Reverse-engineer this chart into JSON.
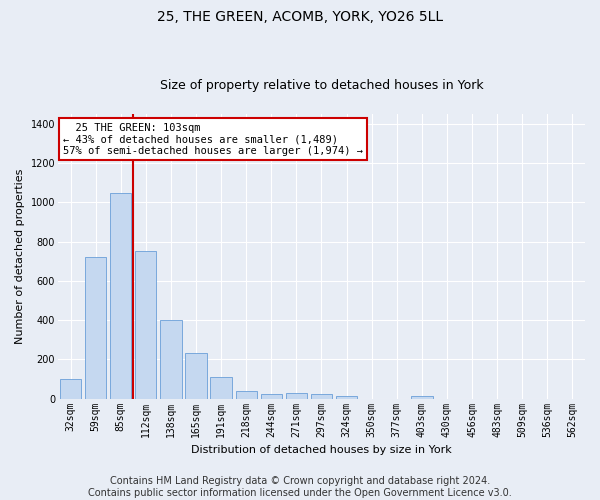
{
  "title": "25, THE GREEN, ACOMB, YORK, YO26 5LL",
  "subtitle": "Size of property relative to detached houses in York",
  "xlabel": "Distribution of detached houses by size in York",
  "ylabel": "Number of detached properties",
  "categories": [
    "32sqm",
    "59sqm",
    "85sqm",
    "112sqm",
    "138sqm",
    "165sqm",
    "191sqm",
    "218sqm",
    "244sqm",
    "271sqm",
    "297sqm",
    "324sqm",
    "350sqm",
    "377sqm",
    "403sqm",
    "430sqm",
    "456sqm",
    "483sqm",
    "509sqm",
    "536sqm",
    "562sqm"
  ],
  "values": [
    100,
    720,
    1050,
    750,
    400,
    235,
    110,
    40,
    22,
    27,
    25,
    15,
    0,
    0,
    15,
    0,
    0,
    0,
    0,
    0,
    0
  ],
  "bar_color": "#c5d8f0",
  "bar_edge_color": "#6a9fd8",
  "vline_color": "#cc0000",
  "vline_x_index": 2.5,
  "annotation_text": "  25 THE GREEN: 103sqm  \n← 43% of detached houses are smaller (1,489)\n57% of semi-detached houses are larger (1,974) →",
  "annotation_box_color": "#ffffff",
  "annotation_box_edge": "#cc0000",
  "ylim": [
    0,
    1450
  ],
  "yticks": [
    0,
    200,
    400,
    600,
    800,
    1000,
    1200,
    1400
  ],
  "footer_line1": "Contains HM Land Registry data © Crown copyright and database right 2024.",
  "footer_line2": "Contains public sector information licensed under the Open Government Licence v3.0.",
  "bg_color": "#e8edf5",
  "plot_bg_color": "#e8edf5",
  "title_fontsize": 10,
  "subtitle_fontsize": 9,
  "footer_fontsize": 7,
  "axis_label_fontsize": 8,
  "tick_fontsize": 7,
  "ylabel_fontsize": 8
}
